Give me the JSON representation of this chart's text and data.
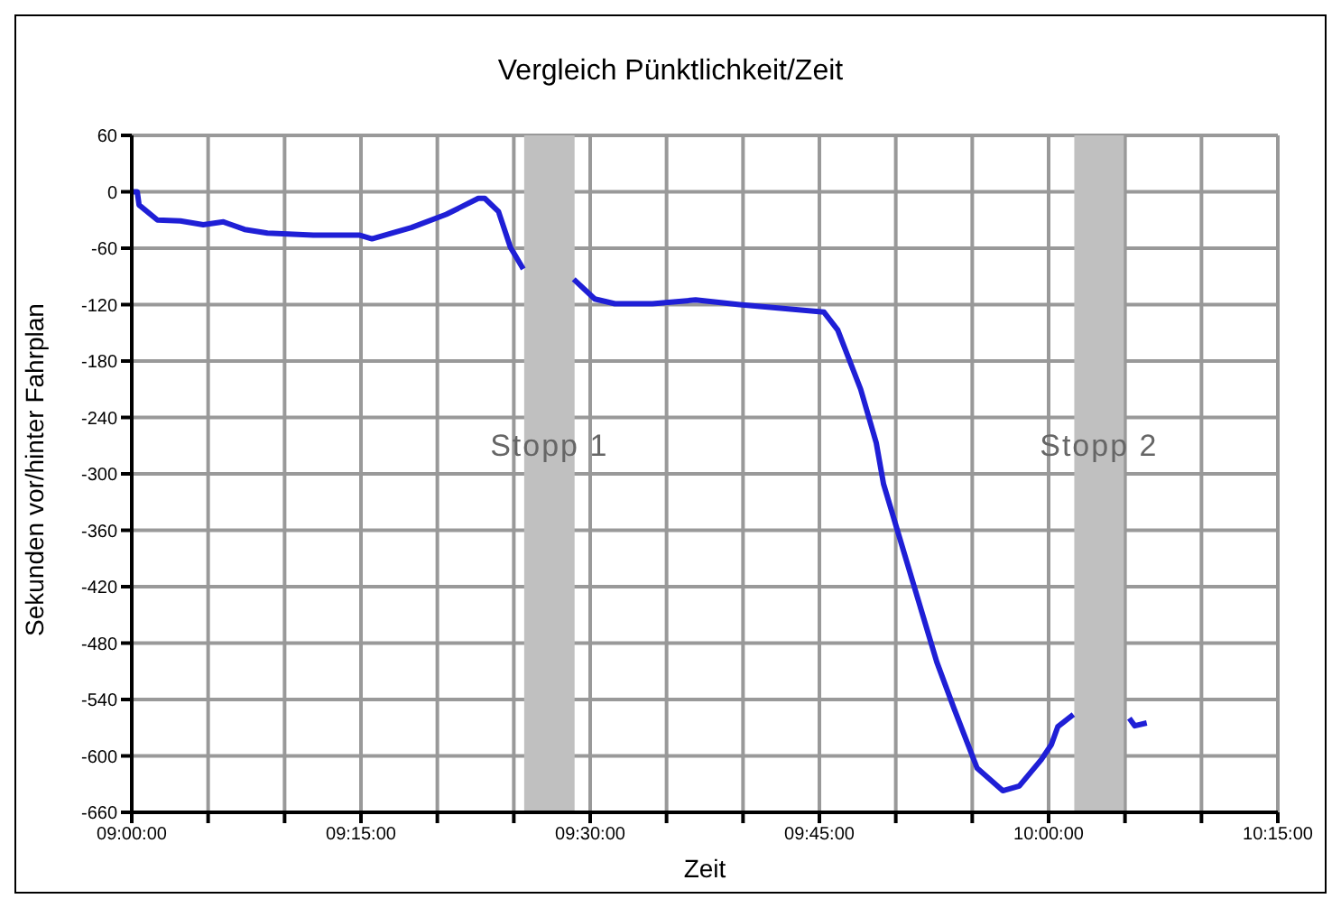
{
  "chart_data": {
    "type": "line",
    "title": "Vergleich Pünktlichkeit/Zeit",
    "xlabel": "Zeit",
    "ylabel": "Sekunden vor/hinter Fahrplan",
    "x": [
      9.0,
      9.006,
      9.008,
      9.028,
      9.053,
      9.078,
      9.1,
      9.123,
      9.148,
      9.198,
      9.248,
      9.262,
      9.305,
      9.343,
      9.378,
      9.385,
      9.4,
      9.413,
      9.427,
      9.44,
      9.482,
      9.505,
      9.527,
      9.568,
      9.615,
      9.663,
      9.755,
      9.77,
      9.795,
      9.812,
      9.82,
      9.847,
      9.878,
      9.897,
      9.922,
      9.95,
      9.968,
      9.992,
      10.003,
      10.01,
      10.027,
      10.042,
      10.088,
      10.094,
      10.107
    ],
    "series": [
      {
        "color": "#1f1fd6",
        "values": [
          0,
          0,
          -14,
          -30,
          -31,
          -35,
          -32,
          -40,
          -44,
          -46,
          -46,
          -50,
          -38,
          -24,
          -7,
          -7,
          -21,
          -59,
          -82,
          null,
          -93,
          -114,
          -119,
          -119,
          -115,
          -120,
          -128,
          -147,
          -210,
          -267,
          -311,
          -399,
          -500,
          -550,
          -613,
          -637,
          -632,
          -604,
          -588,
          -569,
          -556,
          null,
          -560,
          -568,
          -565
        ]
      }
    ],
    "xlim": [
      9.0,
      10.25
    ],
    "ylim": [
      -660,
      60
    ],
    "xticks": [
      {
        "value": 9.0,
        "label": "09:00:00"
      },
      {
        "value": 9.0833,
        "label": null
      },
      {
        "value": 9.1667,
        "label": null
      },
      {
        "value": 9.25,
        "label": "09:15:00"
      },
      {
        "value": 9.3333,
        "label": null
      },
      {
        "value": 9.4167,
        "label": null
      },
      {
        "value": 9.5,
        "label": "09:30:00"
      },
      {
        "value": 9.5833,
        "label": null
      },
      {
        "value": 9.6667,
        "label": null
      },
      {
        "value": 9.75,
        "label": "09:45:00"
      },
      {
        "value": 9.8333,
        "label": null
      },
      {
        "value": 9.9167,
        "label": null
      },
      {
        "value": 10.0,
        "label": "10:00:00"
      },
      {
        "value": 10.0833,
        "label": null
      },
      {
        "value": 10.1667,
        "label": null
      },
      {
        "value": 10.25,
        "label": "10:15:00"
      }
    ],
    "yticks": [
      -660,
      -600,
      -540,
      -480,
      -420,
      -360,
      -300,
      -240,
      -180,
      -120,
      -60,
      0,
      60
    ],
    "bands": [
      {
        "axis": "x",
        "from": 9.428,
        "to": 9.483,
        "label": "Stopp 1",
        "color": "#c0c0c0"
      },
      {
        "axis": "x",
        "from": 10.028,
        "to": 10.082,
        "label": "Stopp 2",
        "color": "#c0c0c0"
      }
    ],
    "grid": true,
    "legend": false,
    "marker": "none",
    "line_style": "solid"
  }
}
